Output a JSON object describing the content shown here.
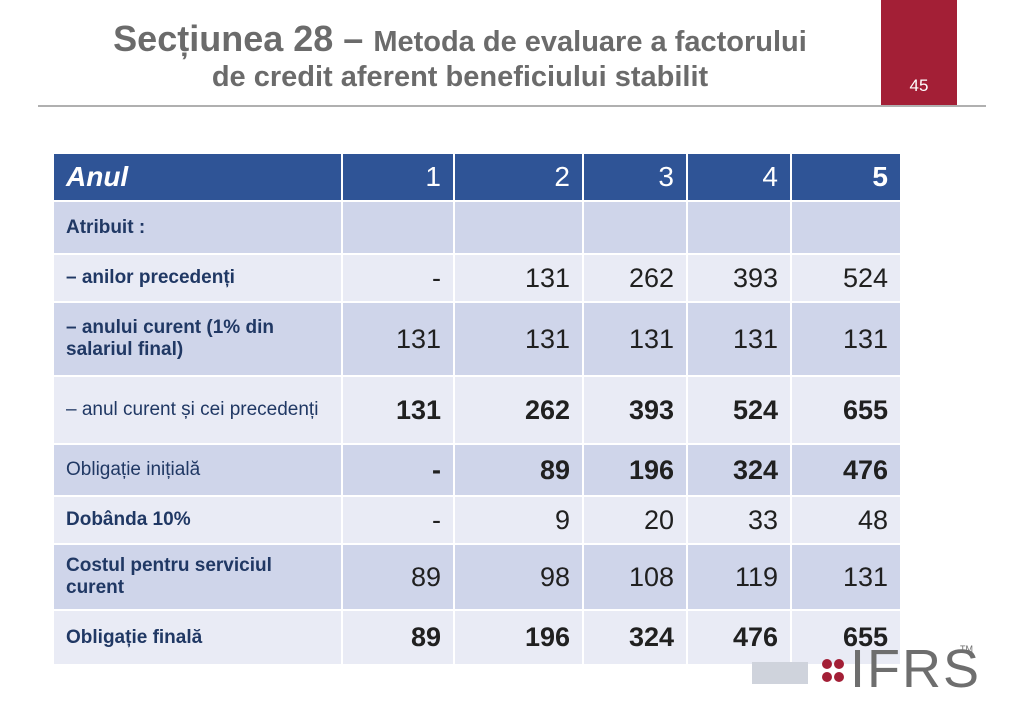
{
  "slide": {
    "title_main": "Secțiunea 28 – ",
    "title_rest": "Metoda de evaluare a factorului",
    "title_line2": "de credit aferent beneficiului stabilit",
    "page_number": "45"
  },
  "table": {
    "header": [
      "Anul",
      "1",
      "2",
      "3",
      "4",
      "5"
    ],
    "rows": [
      {
        "label": "Atribuit :",
        "values": [
          "",
          "",
          "",
          "",
          ""
        ]
      },
      {
        "label": "– anilor precedenți",
        "values": [
          "-",
          "131",
          "262",
          "393",
          "524"
        ]
      },
      {
        "label": "– anului curent (1% din salariul final)",
        "values": [
          "131",
          "131",
          "131",
          "131",
          "131"
        ]
      },
      {
        "label": "– anul curent și cei precedenți",
        "values": [
          "131",
          "262",
          "393",
          "524",
          "655"
        ]
      },
      {
        "label": "Obligație inițială",
        "values": [
          "-",
          "89",
          "196",
          "324",
          "476"
        ]
      },
      {
        "label": "Dobânda 10%",
        "values": [
          "-",
          "9",
          "20",
          "33",
          "48"
        ]
      },
      {
        "label": "Costul pentru serviciul curent",
        "values": [
          "89",
          "98",
          "108",
          "119",
          "131"
        ]
      },
      {
        "label": "Obligație finală",
        "values": [
          "89",
          "196",
          "324",
          "476",
          "655"
        ]
      }
    ]
  },
  "logo": {
    "text": "IFRS",
    "tm": "TM"
  },
  "colors": {
    "accent": "#a31f36",
    "header": "#2f5496",
    "row_dark": "#cfd5ea",
    "row_light": "#e9ebf5"
  }
}
